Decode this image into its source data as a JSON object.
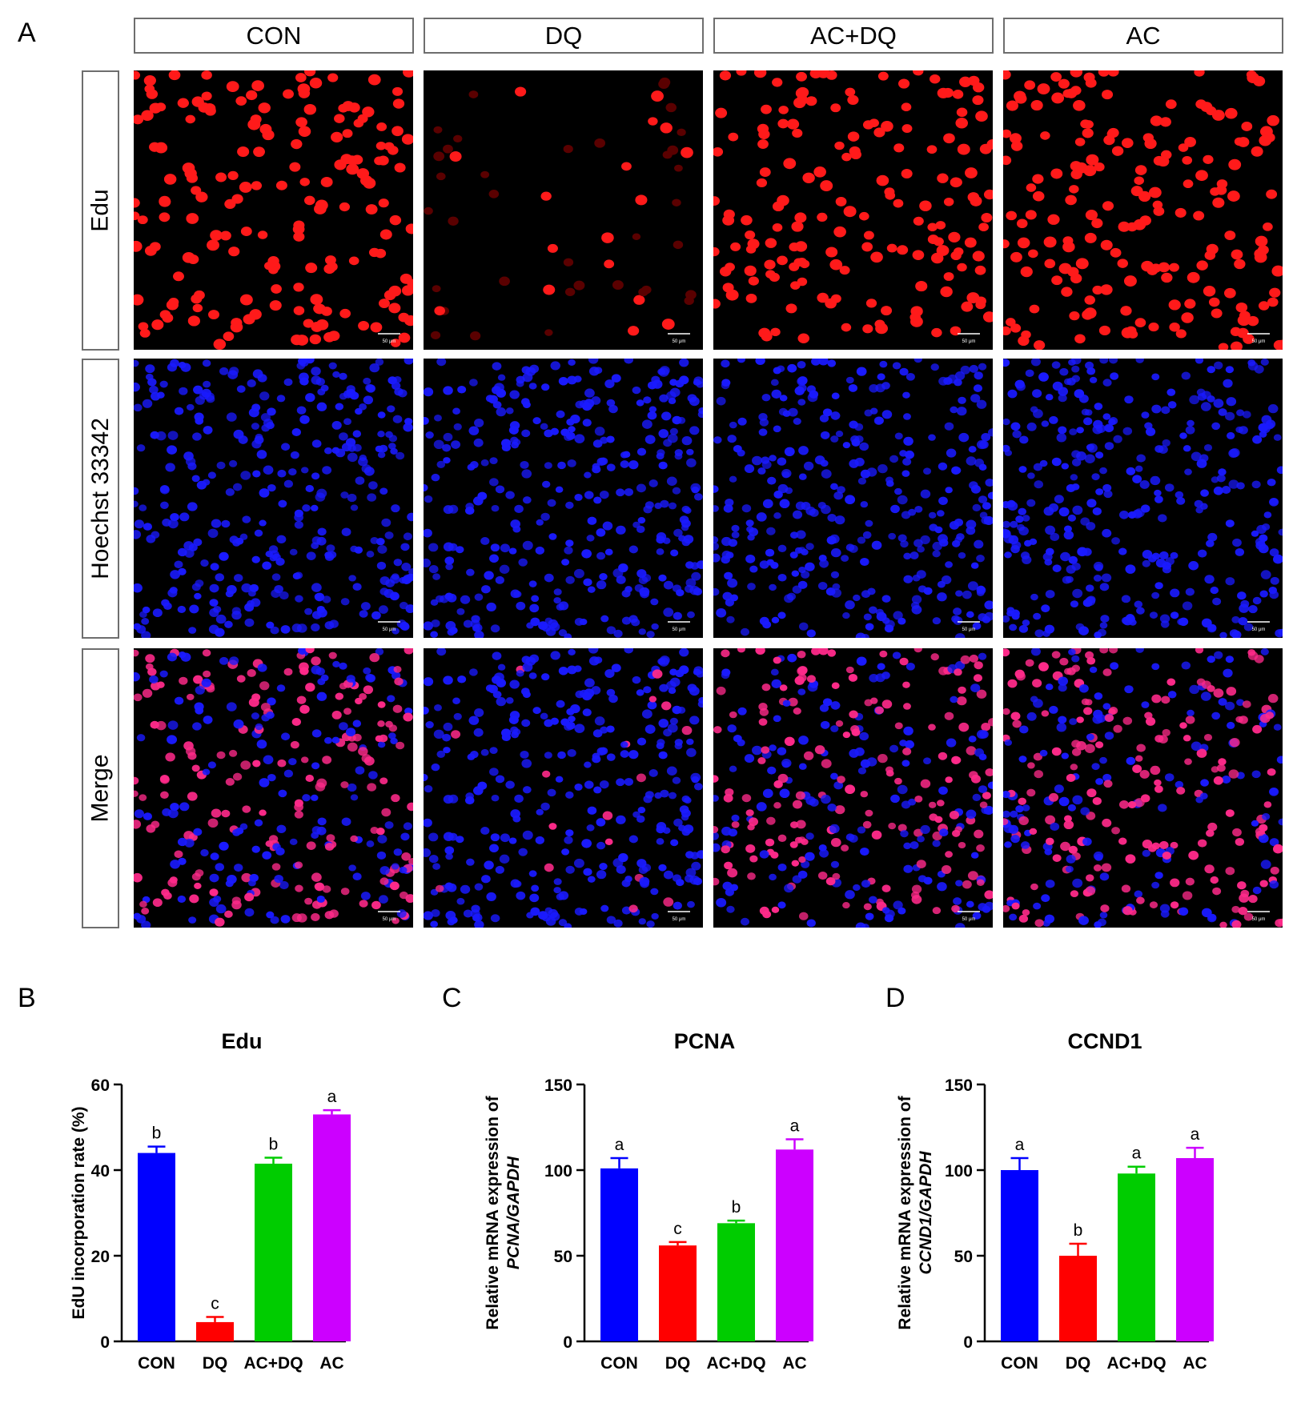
{
  "panels": {
    "A": "A",
    "B": "B",
    "C": "C",
    "D": "D"
  },
  "columns": [
    "CON",
    "DQ",
    "AC+DQ",
    "AC"
  ],
  "rows": [
    "Edu",
    "Hoechst 33342",
    "Merge"
  ],
  "scale_bars": {
    "edu": [
      "50 μm",
      "50 μm",
      "50 μm",
      "50 μm"
    ],
    "hoechst": [
      "50 μm",
      "50 μm",
      "50 μm",
      "50 μm"
    ],
    "merge": [
      "50 μm",
      "50 μm",
      "50 μm",
      "50 μm"
    ]
  },
  "microscopy": {
    "edu_positive_level": [
      0.9,
      0.12,
      0.95,
      1.0
    ],
    "colors": {
      "edu": "#ff1a1a",
      "hoechst": "#1a1aff",
      "merge": "#ff2a8a",
      "background": "#000000"
    }
  },
  "chart_data": [
    {
      "type": "bar",
      "title": "Edu",
      "ylabel": "EdU incorporation rate (%)",
      "categories": [
        "CON",
        "DQ",
        "AC+DQ",
        "AC"
      ],
      "values": [
        44,
        4.5,
        41.5,
        53
      ],
      "errors": [
        1.5,
        1.2,
        1.4,
        1.0
      ],
      "annotations": [
        "b",
        "c",
        "b",
        "a"
      ],
      "ylim": [
        0,
        60
      ],
      "yticks": [
        0,
        20,
        40,
        60
      ],
      "colors": [
        "#0000ff",
        "#ff0000",
        "#00cc00",
        "#cc00ff"
      ]
    },
    {
      "type": "bar",
      "title": "PCNA",
      "ylabel_line1": "Relative mRNA expression of",
      "ylabel_line2": "PCNA/GAPDH",
      "categories": [
        "CON",
        "DQ",
        "AC+DQ",
        "AC"
      ],
      "values": [
        101,
        56,
        69,
        112
      ],
      "errors": [
        6,
        2,
        1.5,
        6
      ],
      "annotations": [
        "a",
        "c",
        "b",
        "a"
      ],
      "ylim": [
        0,
        150
      ],
      "yticks": [
        0,
        50,
        100,
        150
      ],
      "colors": [
        "#0000ff",
        "#ff0000",
        "#00cc00",
        "#cc00ff"
      ]
    },
    {
      "type": "bar",
      "title": "CCND1",
      "ylabel_line1": "Relative mRNA expression of",
      "ylabel_line2": "CCND1/GAPDH",
      "categories": [
        "CON",
        "DQ",
        "AC+DQ",
        "AC"
      ],
      "values": [
        100,
        50,
        98,
        107
      ],
      "errors": [
        7,
        7,
        4,
        6
      ],
      "annotations": [
        "a",
        "b",
        "a",
        "a"
      ],
      "ylim": [
        0,
        150
      ],
      "yticks": [
        0,
        50,
        100,
        150
      ],
      "colors": [
        "#0000ff",
        "#ff0000",
        "#00cc00",
        "#cc00ff"
      ]
    }
  ]
}
